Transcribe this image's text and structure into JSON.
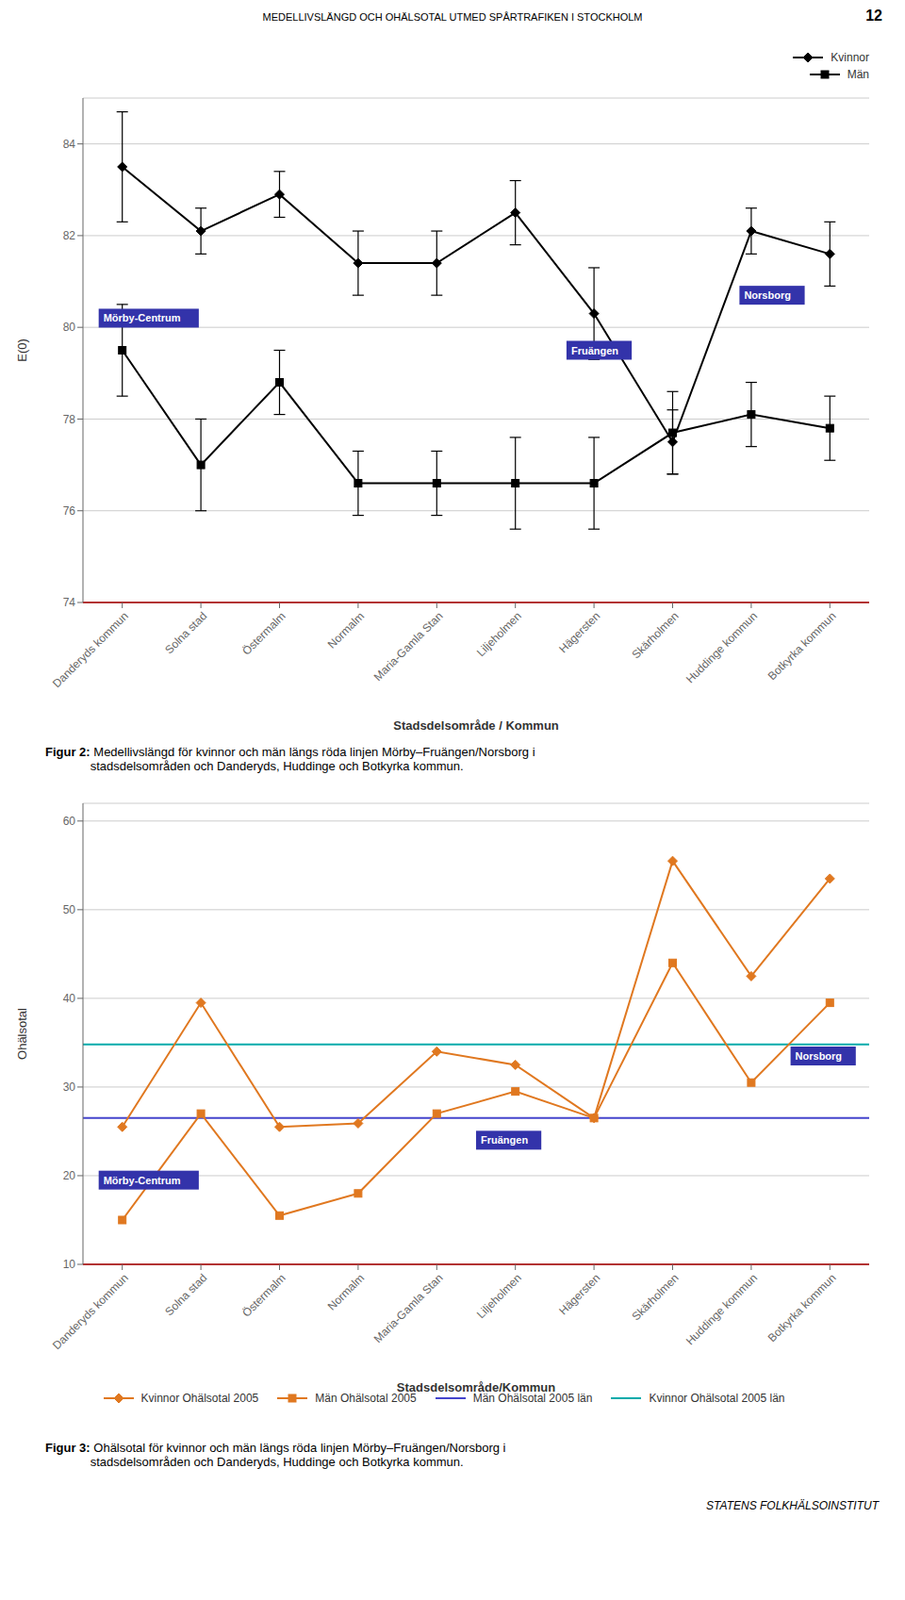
{
  "header": "MEDELLIVSLÄNGD OCH OHÄLSOTAL UTMED SPÅRTRAFIKEN I STOCKHOLM",
  "page_number": "12",
  "footer": "STATENS FOLKHÄLSOINSTITUT",
  "chart_data": [
    {
      "type": "line",
      "categories": [
        "Danderyds kommun",
        "Solna stad",
        "Östermalm",
        "Normalm",
        "Maria-Gamla Stan",
        "Liljeholmen",
        "Hägersten",
        "Skärholmen",
        "Huddinge kommun",
        "Botkyrka kommun"
      ],
      "xlabel": "Stadsdelsområde / Kommun",
      "ylabel": "E(0)",
      "ylim": [
        74,
        85
      ],
      "yticks": [
        74,
        76,
        78,
        80,
        82,
        84
      ],
      "grid": true,
      "legend": "upper right",
      "series": [
        {
          "name": "Kvinnor",
          "color": "#000000",
          "marker": "diamond",
          "values": [
            83.5,
            82.1,
            82.9,
            81.4,
            81.4,
            82.5,
            80.3,
            77.5,
            82.1,
            81.6
          ],
          "error_lo": [
            1.2,
            0.5,
            0.5,
            0.7,
            0.7,
            0.7,
            1.0,
            0.7,
            0.5,
            0.7
          ],
          "error_hi": [
            1.2,
            0.5,
            0.5,
            0.7,
            0.7,
            0.7,
            1.0,
            0.7,
            0.5,
            0.7
          ]
        },
        {
          "name": "Män",
          "color": "#000000",
          "marker": "square",
          "values": [
            79.5,
            77.0,
            78.8,
            76.6,
            76.6,
            76.6,
            76.6,
            77.7,
            78.1,
            77.8
          ],
          "error_lo": [
            1.0,
            1.0,
            0.7,
            0.7,
            0.7,
            1.0,
            1.0,
            0.9,
            0.7,
            0.7
          ],
          "error_hi": [
            1.0,
            1.0,
            0.7,
            0.7,
            0.7,
            1.0,
            1.0,
            0.9,
            0.7,
            0.7
          ]
        }
      ],
      "hlines": [
        {
          "value": 74,
          "color": "#ff0000"
        }
      ],
      "annotations": [
        {
          "text": "Mörby-Centrum",
          "x": -0.3,
          "y": 80.2,
          "color": "#3333aa"
        },
        {
          "text": "Fruängen",
          "x": 5.65,
          "y": 79.5,
          "color": "#3333aa"
        },
        {
          "text": "Norsborg",
          "x": 7.85,
          "y": 80.7,
          "color": "#3333aa"
        }
      ],
      "caption": {
        "label": "Figur 2:",
        "text": " Medellivslängd för kvinnor och män längs röda linjen Mörby–Fruängen/Norsborg i\nstadsdelsområden och Danderyds, Huddinge och Botkyrka kommun."
      }
    },
    {
      "type": "line",
      "categories": [
        "Danderyds kommun",
        "Solna stad",
        "Östermalm",
        "Normalm",
        "Maria-Gamla Stan",
        "Liljeholmen",
        "Hägersten",
        "Skärholmen",
        "Huddinge kommun",
        "Botkyrka kommun"
      ],
      "xlabel": "Stadsdelsområde/Kommun",
      "ylabel": "Ohälsotal",
      "ylim": [
        10,
        62
      ],
      "yticks": [
        10,
        20,
        30,
        40,
        50,
        60
      ],
      "grid": true,
      "legend": "bottom",
      "series": [
        {
          "name": "Kvinnor Ohälsotal 2005",
          "color": "#e07820",
          "marker": "diamond",
          "values": [
            25.5,
            39.5,
            25.5,
            25.9,
            34.0,
            32.5,
            26.5,
            55.5,
            42.5,
            53.5
          ]
        },
        {
          "name": "Män Ohälsotal 2005",
          "color": "#e07820",
          "marker": "square",
          "values": [
            15.0,
            27.0,
            15.5,
            18.0,
            27.0,
            29.5,
            26.5,
            44.0,
            30.5,
            39.5
          ]
        },
        {
          "name": "Män Ohälsotal 2005 län",
          "type": "hline",
          "color": "#4444cc",
          "value": 26.5
        },
        {
          "name": "Kvinnor Ohälsotal 2005 län",
          "type": "hline",
          "color": "#00aaaa",
          "value": 34.8
        }
      ],
      "hlines": [
        {
          "value": 10,
          "color": "#ff0000"
        }
      ],
      "annotations": [
        {
          "text": "Mörby-Centrum",
          "x": -0.3,
          "y": 19.5,
          "color": "#3333aa"
        },
        {
          "text": "Fruängen",
          "x": 4.5,
          "y": 24.0,
          "color": "#3333aa"
        },
        {
          "text": "Norsborg",
          "x": 8.5,
          "y": 33.5,
          "color": "#3333aa"
        }
      ],
      "caption": {
        "label": "Figur 3:",
        "text": " Ohälsotal för kvinnor och män längs röda linjen Mörby–Fruängen/Norsborg i\nstadsdelsområden och Danderyds, Huddinge och Botkyrka kommun."
      }
    }
  ]
}
